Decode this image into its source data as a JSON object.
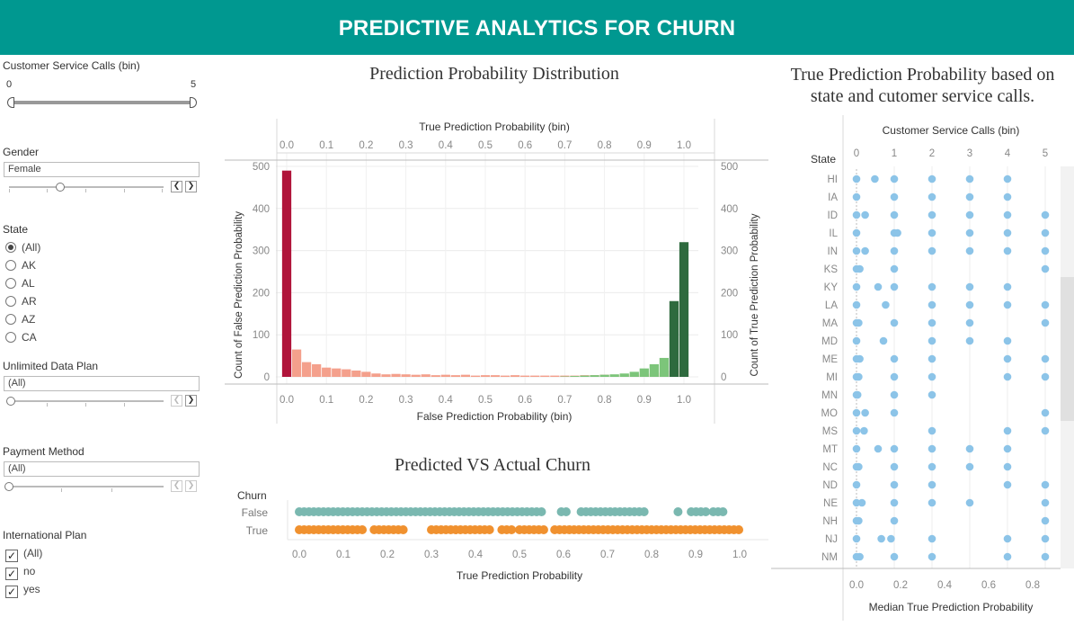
{
  "header": {
    "title": "PREDICTIVE ANALYTICS FOR CHURN"
  },
  "filters": {
    "calls": {
      "title": "Customer Service Calls (bin)",
      "min": "0",
      "max": "5"
    },
    "gender": {
      "title": "Gender",
      "value": "Female"
    },
    "state": {
      "title": "State",
      "options": [
        "(All)",
        "AK",
        "AL",
        "AR",
        "AZ",
        "CA"
      ],
      "selected": "(All)"
    },
    "data_plan": {
      "title": "Unlimited Data Plan",
      "value": "(All)"
    },
    "payment": {
      "title": "Payment Method",
      "value": "(All)"
    },
    "intl": {
      "title": "International Plan",
      "options": [
        "(All)",
        "no",
        "yes"
      ]
    }
  },
  "hist": {
    "title": "Prediction Probability Distribution",
    "top_axis_title": "True Prediction Probability (bin)",
    "bottom_axis_title": "False Prediction Probability (bin)",
    "left_axis_title": "Count of False Prediction Probability",
    "right_axis_title": "Count of True Prediction Probability"
  },
  "strip": {
    "title": "Predicted VS Actual Churn",
    "row_header": "Churn",
    "rows": [
      "False",
      "True"
    ],
    "x_title": "True Prediction Probability"
  },
  "dot": {
    "title_line1": "True Prediction Probability based on",
    "title_line2": "state and cutomer service calls.",
    "row_header": "State",
    "col_header": "Customer Service Calls (bin)",
    "x_title": "Median True Prediction Probability"
  },
  "chart_data": [
    {
      "type": "bar",
      "title": "Prediction Probability Distribution",
      "xlabel": "False Prediction Probability (bin)",
      "x2label": "True Prediction Probability (bin)",
      "ylabel": "Count of False Prediction Probability",
      "y2label": "Count of True Prediction Probability",
      "ylim": [
        0,
        500
      ],
      "yticks": [
        0,
        100,
        200,
        300,
        400,
        500
      ],
      "xticks": [
        "0.0",
        "0.1",
        "0.2",
        "0.3",
        "0.4",
        "0.5",
        "0.6",
        "0.7",
        "0.8",
        "0.9",
        "1.0"
      ],
      "bin_width": 0.025,
      "series": [
        {
          "name": "False",
          "color": "#f4a08c",
          "highlight_color": "#b0143a",
          "x": [
            0.0,
            0.025,
            0.05,
            0.075,
            0.1,
            0.125,
            0.15,
            0.175,
            0.2,
            0.225,
            0.25,
            0.275,
            0.3,
            0.325,
            0.35,
            0.375,
            0.4,
            0.425,
            0.45,
            0.475,
            0.5,
            0.525,
            0.55,
            0.575,
            0.6,
            0.625,
            0.65,
            0.675,
            0.7,
            0.725,
            0.75,
            0.775,
            0.8,
            0.825,
            0.85,
            0.875,
            0.9,
            0.925,
            0.95,
            0.975,
            1.0
          ],
          "values": [
            490,
            65,
            35,
            30,
            22,
            20,
            18,
            15,
            12,
            8,
            6,
            7,
            6,
            5,
            6,
            4,
            5,
            4,
            5,
            3,
            4,
            4,
            3,
            4,
            3,
            3,
            3,
            3,
            3,
            3,
            4,
            4,
            5,
            5,
            5,
            6,
            6,
            8,
            10,
            15,
            20
          ]
        },
        {
          "name": "True",
          "color": "#7cc57a",
          "highlight_color": "#2e6a3e",
          "x": [
            0.7,
            0.725,
            0.75,
            0.775,
            0.8,
            0.825,
            0.85,
            0.875,
            0.9,
            0.925,
            0.95,
            0.975,
            1.0
          ],
          "values": [
            1,
            2,
            3,
            4,
            5,
            6,
            8,
            12,
            20,
            30,
            45,
            180,
            320
          ]
        }
      ]
    },
    {
      "type": "scatter",
      "title": "Predicted VS Actual Churn",
      "ylabel": "Churn",
      "xlabel": "True Prediction Probability",
      "xlim": [
        0,
        1
      ],
      "xticks": [
        "0.0",
        "0.1",
        "0.2",
        "0.3",
        "0.4",
        "0.5",
        "0.6",
        "0.7",
        "0.8",
        "0.9",
        "1.0"
      ],
      "series": [
        {
          "name": "False",
          "color": "#7ab8b0",
          "ranges": [
            [
              0.0,
              0.55
            ],
            [
              0.595,
              0.61
            ],
            [
              0.64,
              0.79
            ],
            [
              0.86,
              0.87
            ],
            [
              0.89,
              0.93
            ],
            [
              0.94,
              0.97
            ]
          ]
        },
        {
          "name": "True",
          "color": "#f0912f",
          "ranges": [
            [
              0.0,
              0.15
            ],
            [
              0.17,
              0.24
            ],
            [
              0.3,
              0.44
            ],
            [
              0.46,
              0.49
            ],
            [
              0.5,
              0.56
            ],
            [
              0.58,
              1.0
            ]
          ]
        }
      ]
    },
    {
      "type": "scatter",
      "title": "True Prediction Probability based on state and cutomer service calls.",
      "xlabel": "Median True Prediction Probability",
      "row_label": "State",
      "col_label": "Customer Service Calls (bin)",
      "columns": [
        "0",
        "1",
        "2",
        "3",
        "4",
        "5"
      ],
      "rows": [
        "HI",
        "IA",
        "ID",
        "IL",
        "IN",
        "KS",
        "KY",
        "LA",
        "MA",
        "MD",
        "ME",
        "MI",
        "MN",
        "MO",
        "MS",
        "MT",
        "NC",
        "ND",
        "NE",
        "NH",
        "NJ",
        "NM"
      ],
      "xticks": [
        "0.0",
        "0.2",
        "0.4",
        "0.6",
        "0.8"
      ],
      "xlim": [
        0,
        0.9
      ],
      "color": "#8cc4e8",
      "points": [
        [
          0,
          0,
          0.0
        ],
        [
          0,
          0,
          0.17
        ],
        [
          0,
          1,
          0.0
        ],
        [
          0,
          2,
          0.0
        ],
        [
          0,
          3,
          0.0
        ],
        [
          0,
          4,
          0.0
        ],
        [
          1,
          0,
          0.0
        ],
        [
          1,
          1,
          0.0
        ],
        [
          1,
          2,
          0.0
        ],
        [
          1,
          3,
          0.0
        ],
        [
          1,
          4,
          0.0
        ],
        [
          2,
          0,
          0.0
        ],
        [
          2,
          0,
          0.08
        ],
        [
          2,
          1,
          0.0
        ],
        [
          2,
          2,
          0.0
        ],
        [
          2,
          3,
          0.0
        ],
        [
          2,
          4,
          0.0
        ],
        [
          2,
          5,
          0.0
        ],
        [
          3,
          0,
          0.0
        ],
        [
          3,
          1,
          0.0
        ],
        [
          3,
          1,
          0.03
        ],
        [
          3,
          2,
          0.0
        ],
        [
          3,
          3,
          0.0
        ],
        [
          3,
          4,
          0.0
        ],
        [
          3,
          5,
          0.0
        ],
        [
          4,
          0,
          0.0
        ],
        [
          4,
          0,
          0.08
        ],
        [
          4,
          1,
          0.0
        ],
        [
          4,
          2,
          0.0
        ],
        [
          4,
          3,
          0.0
        ],
        [
          4,
          4,
          0.0
        ],
        [
          4,
          5,
          0.0
        ],
        [
          5,
          0,
          0.0
        ],
        [
          5,
          0,
          0.03
        ],
        [
          5,
          1,
          0.0
        ],
        [
          5,
          5,
          0.0
        ],
        [
          6,
          0,
          0.0
        ],
        [
          6,
          0,
          0.2
        ],
        [
          6,
          1,
          0.0
        ],
        [
          6,
          2,
          0.0
        ],
        [
          6,
          3,
          0.0
        ],
        [
          6,
          4,
          0.0
        ],
        [
          7,
          0,
          0.0
        ],
        [
          7,
          1,
          -0.08
        ],
        [
          7,
          2,
          0.0
        ],
        [
          7,
          3,
          0.0
        ],
        [
          7,
          4,
          0.0
        ],
        [
          7,
          5,
          0.0
        ],
        [
          8,
          0,
          0.0
        ],
        [
          8,
          0,
          0.02
        ],
        [
          8,
          1,
          0.0
        ],
        [
          8,
          2,
          0.0
        ],
        [
          8,
          3,
          0.0
        ],
        [
          8,
          5,
          0.0
        ],
        [
          9,
          0,
          0.0
        ],
        [
          9,
          1,
          -0.1
        ],
        [
          9,
          2,
          0.0
        ],
        [
          9,
          3,
          0.0
        ],
        [
          9,
          4,
          0.0
        ],
        [
          10,
          0,
          0.0
        ],
        [
          10,
          0,
          0.03
        ],
        [
          10,
          1,
          0.0
        ],
        [
          10,
          2,
          0.0
        ],
        [
          10,
          4,
          0.0
        ],
        [
          10,
          5,
          0.0
        ],
        [
          11,
          0,
          0.0
        ],
        [
          11,
          0,
          0.02
        ],
        [
          11,
          1,
          0.0
        ],
        [
          11,
          2,
          0.0
        ],
        [
          11,
          4,
          0.0
        ],
        [
          11,
          5,
          0.0
        ],
        [
          12,
          0,
          0.0
        ],
        [
          12,
          0,
          0.01
        ],
        [
          12,
          1,
          0.0
        ],
        [
          12,
          2,
          0.0
        ],
        [
          13,
          0,
          0.0
        ],
        [
          13,
          0,
          0.08
        ],
        [
          13,
          1,
          0.0
        ],
        [
          13,
          5,
          0.0
        ],
        [
          14,
          0,
          0.0
        ],
        [
          14,
          0,
          0.07
        ],
        [
          14,
          2,
          0.0
        ],
        [
          14,
          4,
          0.0
        ],
        [
          14,
          5,
          0.0
        ],
        [
          15,
          0,
          0.0
        ],
        [
          15,
          0,
          0.2
        ],
        [
          15,
          1,
          0.0
        ],
        [
          15,
          2,
          0.0
        ],
        [
          15,
          3,
          0.0
        ],
        [
          15,
          4,
          0.0
        ],
        [
          16,
          0,
          0.0
        ],
        [
          16,
          0,
          0.02
        ],
        [
          16,
          1,
          0.0
        ],
        [
          16,
          2,
          0.0
        ],
        [
          16,
          3,
          0.0
        ],
        [
          16,
          4,
          0.0
        ],
        [
          17,
          0,
          0.0
        ],
        [
          17,
          1,
          0.0
        ],
        [
          17,
          2,
          0.0
        ],
        [
          17,
          4,
          0.0
        ],
        [
          17,
          5,
          0.0
        ],
        [
          18,
          0,
          0.0
        ],
        [
          18,
          0,
          0.05
        ],
        [
          18,
          1,
          0.0
        ],
        [
          18,
          2,
          0.0
        ],
        [
          18,
          3,
          0.0
        ],
        [
          18,
          5,
          0.0
        ],
        [
          19,
          0,
          0.0
        ],
        [
          19,
          0,
          0.02
        ],
        [
          19,
          1,
          0.0
        ],
        [
          19,
          5,
          0.0
        ],
        [
          20,
          0,
          0.0
        ],
        [
          20,
          0,
          0.23
        ],
        [
          20,
          1,
          -0.03
        ],
        [
          20,
          2,
          0.0
        ],
        [
          20,
          4,
          0.0
        ],
        [
          20,
          5,
          0.0
        ],
        [
          21,
          0,
          0.0
        ],
        [
          21,
          0,
          0.03
        ],
        [
          21,
          1,
          0.0
        ],
        [
          21,
          2,
          0.0
        ],
        [
          21,
          4,
          0.0
        ],
        [
          21,
          5,
          0.0
        ]
      ]
    }
  ]
}
